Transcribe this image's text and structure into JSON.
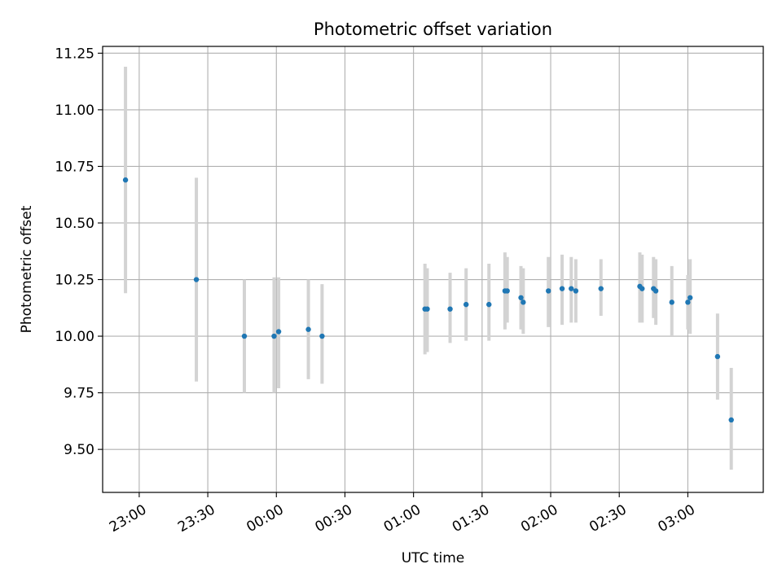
{
  "chart_data": {
    "type": "scatter",
    "title": "Photometric offset variation",
    "xlabel": "UTC time",
    "ylabel": "Photometric offset",
    "x_ticks": [
      "23:00",
      "23:30",
      "00:00",
      "00:30",
      "01:00",
      "01:30",
      "02:00",
      "02:30",
      "03:00"
    ],
    "y_ticks": [
      "9.50",
      "9.75",
      "10.00",
      "10.25",
      "10.50",
      "10.75",
      "11.00",
      "11.25"
    ],
    "xlim": [
      "22:44",
      "03:33"
    ],
    "ylim": [
      9.31,
      11.28
    ],
    "grid": true,
    "marker_color": "#1f77b4",
    "errorbar_color": "#d3d3d3",
    "series": [
      {
        "points": [
          {
            "x": "22:54",
            "y": 10.69,
            "yerr_low": 10.19,
            "yerr_high": 11.19
          },
          {
            "x": "23:25",
            "y": 10.25,
            "yerr_low": 9.8,
            "yerr_high": 10.7
          },
          {
            "x": "23:46",
            "y": 10.0,
            "yerr_low": 9.75,
            "yerr_high": 10.25
          },
          {
            "x": "23:59",
            "y": 10.0,
            "yerr_low": 9.75,
            "yerr_high": 10.26
          },
          {
            "x": "00:01",
            "y": 10.02,
            "yerr_low": 9.77,
            "yerr_high": 10.26
          },
          {
            "x": "00:14",
            "y": 10.03,
            "yerr_low": 9.81,
            "yerr_high": 10.25
          },
          {
            "x": "00:20",
            "y": 10.0,
            "yerr_low": 9.79,
            "yerr_high": 10.23
          },
          {
            "x": "01:05",
            "y": 10.12,
            "yerr_low": 9.92,
            "yerr_high": 10.32
          },
          {
            "x": "01:06",
            "y": 10.12,
            "yerr_low": 9.93,
            "yerr_high": 10.3
          },
          {
            "x": "01:16",
            "y": 10.12,
            "yerr_low": 9.97,
            "yerr_high": 10.28
          },
          {
            "x": "01:23",
            "y": 10.14,
            "yerr_low": 9.98,
            "yerr_high": 10.3
          },
          {
            "x": "01:33",
            "y": 10.14,
            "yerr_low": 9.98,
            "yerr_high": 10.32
          },
          {
            "x": "01:40",
            "y": 10.2,
            "yerr_low": 10.03,
            "yerr_high": 10.37
          },
          {
            "x": "01:41",
            "y": 10.2,
            "yerr_low": 10.06,
            "yerr_high": 10.35
          },
          {
            "x": "01:47",
            "y": 10.17,
            "yerr_low": 10.03,
            "yerr_high": 10.31
          },
          {
            "x": "01:48",
            "y": 10.15,
            "yerr_low": 10.01,
            "yerr_high": 10.3
          },
          {
            "x": "01:59",
            "y": 10.2,
            "yerr_low": 10.04,
            "yerr_high": 10.35
          },
          {
            "x": "02:05",
            "y": 10.21,
            "yerr_low": 10.05,
            "yerr_high": 10.36
          },
          {
            "x": "02:09",
            "y": 10.21,
            "yerr_low": 10.06,
            "yerr_high": 10.35
          },
          {
            "x": "02:11",
            "y": 10.2,
            "yerr_low": 10.06,
            "yerr_high": 10.34
          },
          {
            "x": "02:22",
            "y": 10.21,
            "yerr_low": 10.09,
            "yerr_high": 10.34
          },
          {
            "x": "02:39",
            "y": 10.22,
            "yerr_low": 10.06,
            "yerr_high": 10.37
          },
          {
            "x": "02:40",
            "y": 10.21,
            "yerr_low": 10.06,
            "yerr_high": 10.36
          },
          {
            "x": "02:45",
            "y": 10.21,
            "yerr_low": 10.08,
            "yerr_high": 10.35
          },
          {
            "x": "02:46",
            "y": 10.2,
            "yerr_low": 10.05,
            "yerr_high": 10.34
          },
          {
            "x": "02:53",
            "y": 10.15,
            "yerr_low": 10.0,
            "yerr_high": 10.31
          },
          {
            "x": "03:00",
            "y": 10.15,
            "yerr_low": 10.03,
            "yerr_high": 10.27
          },
          {
            "x": "03:01",
            "y": 10.17,
            "yerr_low": 10.01,
            "yerr_high": 10.34
          },
          {
            "x": "03:13",
            "y": 9.91,
            "yerr_low": 9.72,
            "yerr_high": 10.1
          },
          {
            "x": "03:19",
            "y": 9.63,
            "yerr_low": 9.41,
            "yerr_high": 9.86
          }
        ]
      }
    ]
  }
}
